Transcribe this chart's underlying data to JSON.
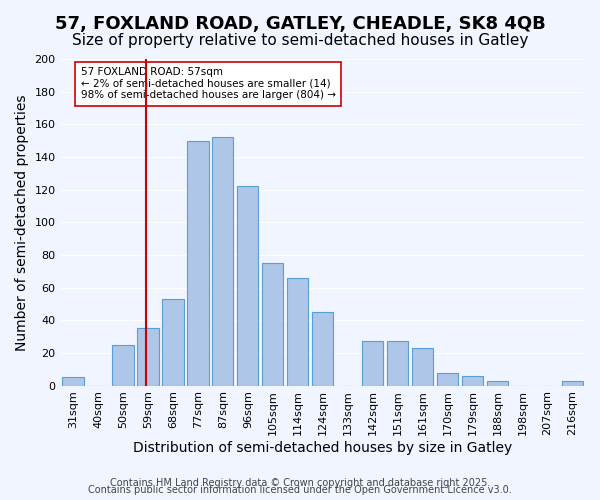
{
  "title": "57, FOXLAND ROAD, GATLEY, CHEADLE, SK8 4QB",
  "subtitle": "Size of property relative to semi-detached houses in Gatley",
  "xlabel": "Distribution of semi-detached houses by size in Gatley",
  "ylabel": "Number of semi-detached properties",
  "bar_labels": [
    "31sqm",
    "40sqm",
    "50sqm",
    "59sqm",
    "68sqm",
    "77sqm",
    "87sqm",
    "96sqm",
    "105sqm",
    "114sqm",
    "124sqm",
    "133sqm",
    "142sqm",
    "151sqm",
    "161sqm",
    "170sqm",
    "179sqm",
    "188sqm",
    "198sqm",
    "207sqm",
    "216sqm"
  ],
  "bar_values": [
    5,
    0,
    25,
    35,
    53,
    150,
    152,
    122,
    75,
    66,
    45,
    0,
    27,
    27,
    23,
    8,
    6,
    3,
    0,
    0,
    3
  ],
  "bar_color": "#aec6e8",
  "bar_edge_color": "#5a9fd4",
  "vline_x": 2.93,
  "vline_color": "#cc0000",
  "annotation_title": "57 FOXLAND ROAD: 57sqm",
  "annotation_line1": "← 2% of semi-detached houses are smaller (14)",
  "annotation_line2": "98% of semi-detached houses are larger (804) →",
  "annotation_box_color": "#ffffff",
  "annotation_box_edge": "#cc0000",
  "ylim": [
    0,
    200
  ],
  "yticks": [
    0,
    20,
    40,
    60,
    80,
    100,
    120,
    140,
    160,
    180,
    200
  ],
  "footer1": "Contains HM Land Registry data © Crown copyright and database right 2025.",
  "footer2": "Contains public sector information licensed under the Open Government Licence v3.0.",
  "bg_color": "#f0f5ff",
  "grid_color": "#ffffff",
  "title_fontsize": 13,
  "subtitle_fontsize": 11,
  "axis_label_fontsize": 10,
  "tick_fontsize": 8,
  "footer_fontsize": 7
}
